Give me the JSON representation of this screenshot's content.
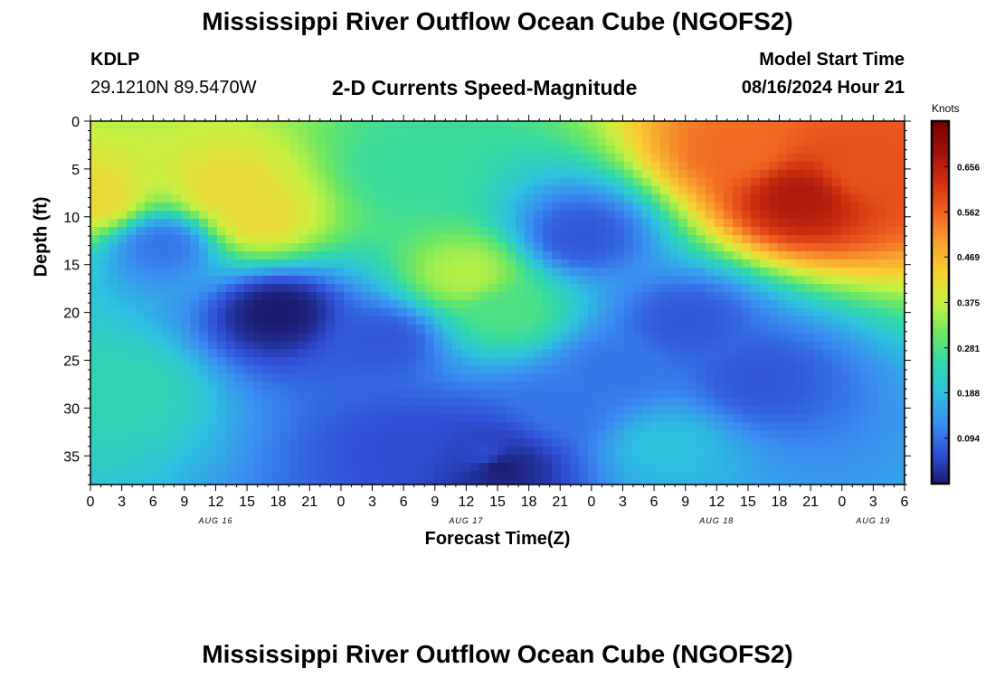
{
  "header": {
    "title": "Mississippi River Outflow Ocean Cube (NGOFS2)",
    "station": "KDLP",
    "coordinates": "29.1210N  89.5470W",
    "subtitle": "2-D Currents Speed-Magnitude",
    "model_start_label": "Model Start Time",
    "model_start_value": "08/16/2024 Hour 21"
  },
  "footer": {
    "title": "Mississippi River Outflow Ocean Cube (NGOFS2)"
  },
  "chart_data": {
    "type": "heatmap",
    "title": "2-D Currents Speed-Magnitude",
    "xlabel": "Forecast Time(Z)",
    "ylabel": "Depth (ft)",
    "x_range_hours": [
      0,
      78
    ],
    "y_range_ft": [
      0,
      38
    ],
    "x_tick_hours": [
      0,
      3,
      6,
      9,
      12,
      15,
      18,
      21,
      24,
      27,
      30,
      33,
      36,
      39,
      42,
      45,
      48,
      51,
      54,
      57,
      60,
      63,
      66,
      69,
      72,
      75,
      78
    ],
    "x_tick_labels": [
      "0",
      "3",
      "6",
      "9",
      "12",
      "15",
      "18",
      "21",
      "0",
      "3",
      "6",
      "9",
      "12",
      "15",
      "18",
      "21",
      "0",
      "3",
      "6",
      "9",
      "12",
      "15",
      "18",
      "21",
      "0",
      "3",
      "6"
    ],
    "date_labels": [
      {
        "hour": 12,
        "label": "AUG 16"
      },
      {
        "hour": 36,
        "label": "AUG 17"
      },
      {
        "hour": 60,
        "label": "AUG 18"
      },
      {
        "hour": 75,
        "label": "AUG 19"
      }
    ],
    "y_ticks": [
      0,
      5,
      10,
      15,
      20,
      25,
      30,
      35
    ],
    "colorbar": {
      "units": "Knots",
      "range": [
        0,
        0.75
      ],
      "ticks": [
        0.094,
        0.188,
        0.281,
        0.375,
        0.469,
        0.562,
        0.656
      ],
      "colors": [
        "#1a1a6e",
        "#3050d8",
        "#3a8ef0",
        "#2ec0e0",
        "#30d8a8",
        "#70e860",
        "#c8f040",
        "#f8d030",
        "#f8a030",
        "#f06020",
        "#d03010",
        "#a01008",
        "#780000"
      ]
    },
    "features": [
      {
        "hour": 0.5,
        "depth": 8,
        "knots": 0.42
      },
      {
        "hour": 13,
        "depth": 7,
        "knots": 0.42
      },
      {
        "hour": 16,
        "depth": 10,
        "knots": 0.42
      },
      {
        "hour": 30,
        "depth": 5,
        "knots": 0.26
      },
      {
        "hour": 36,
        "depth": 16,
        "knots": 0.36
      },
      {
        "hour": 40,
        "depth": 20,
        "knots": 0.28
      },
      {
        "hour": 68,
        "depth": 8,
        "knots": 0.67
      },
      {
        "hour": 62,
        "depth": 3,
        "knots": 0.55
      },
      {
        "hour": 74,
        "depth": 5,
        "knots": 0.58
      },
      {
        "hour": 7,
        "depth": 13,
        "knots": 0.1
      },
      {
        "hour": 3,
        "depth": 28,
        "knots": 0.24
      },
      {
        "hour": 18,
        "depth": 20,
        "knots": 0.0
      },
      {
        "hour": 28,
        "depth": 23,
        "knots": 0.07
      },
      {
        "hour": 30,
        "depth": 34,
        "knots": 0.06
      },
      {
        "hour": 38,
        "depth": 35,
        "knots": 0.06
      },
      {
        "hour": 39,
        "depth": 36,
        "knots": 0.0
      },
      {
        "hour": 47,
        "depth": 12,
        "knots": 0.07
      },
      {
        "hour": 45,
        "depth": 30,
        "knots": 0.1
      },
      {
        "hour": 55,
        "depth": 34,
        "knots": 0.19
      },
      {
        "hour": 57,
        "depth": 21,
        "knots": 0.07
      },
      {
        "hour": 64,
        "depth": 27,
        "knots": 0.07
      },
      {
        "hour": 50,
        "depth": 26,
        "knots": 0.1
      }
    ]
  }
}
